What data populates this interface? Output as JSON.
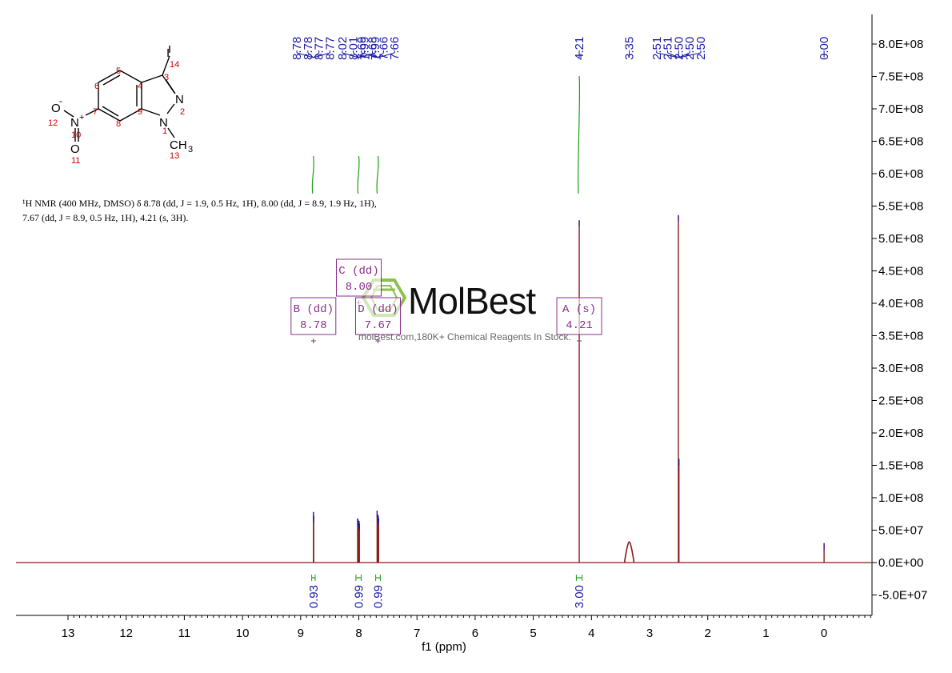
{
  "chart_data": {
    "type": "line",
    "xlabel": "f1 (ppm)",
    "xlim": [
      14,
      -1
    ],
    "x_reversed": true,
    "ylim": [
      -80000000,
      850000000
    ],
    "x_ticks": [
      "13",
      "12",
      "11",
      "10",
      "9",
      "8",
      "7",
      "6",
      "5",
      "4",
      "3",
      "2",
      "1",
      "0"
    ],
    "y_ticks": [
      {
        "value": 800000000,
        "label": "8.0E+08"
      },
      {
        "value": 750000000,
        "label": "7.5E+08"
      },
      {
        "value": 700000000,
        "label": "7.0E+08"
      },
      {
        "value": 650000000,
        "label": "6.5E+08"
      },
      {
        "value": 600000000,
        "label": "6.0E+08"
      },
      {
        "value": 550000000,
        "label": "5.5E+08"
      },
      {
        "value": 500000000,
        "label": "5.0E+08"
      },
      {
        "value": 450000000,
        "label": "4.5E+08"
      },
      {
        "value": 400000000,
        "label": "4.0E+08"
      },
      {
        "value": 350000000,
        "label": "3.5E+08"
      },
      {
        "value": 300000000,
        "label": "3.0E+08"
      },
      {
        "value": 250000000,
        "label": "2.5E+08"
      },
      {
        "value": 200000000,
        "label": "2.0E+08"
      },
      {
        "value": 150000000,
        "label": "1.5E+08"
      },
      {
        "value": 100000000,
        "label": "1.0E+08"
      },
      {
        "value": 50000000,
        "label": "5.0E+07"
      },
      {
        "value": 0,
        "label": "0.0E+00"
      },
      {
        "value": -50000000,
        "label": "-5.0E+07"
      }
    ],
    "peaks": [
      {
        "ppm": 8.78,
        "height": 78000000
      },
      {
        "ppm": 8.775,
        "height": 72000000
      },
      {
        "ppm": 8.02,
        "height": 68000000
      },
      {
        "ppm": 8.01,
        "height": 66000000
      },
      {
        "ppm": 7.995,
        "height": 64000000
      },
      {
        "ppm": 7.99,
        "height": 60000000
      },
      {
        "ppm": 7.685,
        "height": 80000000
      },
      {
        "ppm": 7.675,
        "height": 74000000
      },
      {
        "ppm": 7.665,
        "height": 72000000
      },
      {
        "ppm": 7.66,
        "height": 68000000
      },
      {
        "ppm": 4.21,
        "height": 528000000
      },
      {
        "ppm": 3.35,
        "height": 32000000,
        "broad": true
      },
      {
        "ppm": 2.505,
        "height": 536000000
      },
      {
        "ppm": 2.495,
        "height": 160000000
      },
      {
        "ppm": 0.0,
        "height": 30000000
      }
    ],
    "peak_labels": [
      "8.78",
      "8.78",
      "8.77",
      "8.77",
      "8.02",
      "8.01",
      "7.99",
      "7.99",
      "7.69",
      "7.68",
      "7.66",
      "7.66",
      "4.21",
      "3.35",
      "2.51",
      "2.51",
      "2.50",
      "2.50",
      "2.50",
      "0.00"
    ],
    "peak_label_groups": [
      {
        "ppm": 8.78,
        "labels": [
          0,
          3
        ]
      },
      {
        "ppm": 8.0,
        "labels": [
          4,
          7
        ]
      },
      {
        "ppm": 7.67,
        "labels": [
          8,
          11
        ]
      },
      {
        "ppm": 4.21,
        "labels": [
          12,
          12
        ]
      },
      {
        "ppm": 3.35,
        "labels": [
          13,
          13
        ]
      },
      {
        "ppm": 2.5,
        "labels": [
          14,
          18
        ]
      },
      {
        "ppm": 0.0,
        "labels": [
          19,
          19
        ]
      }
    ],
    "integrals": [
      {
        "ppm": 8.78,
        "value": "0.93",
        "from": 8.81,
        "to": 8.75
      },
      {
        "ppm": 8.0,
        "value": "0.99",
        "from": 8.05,
        "to": 7.96
      },
      {
        "ppm": 7.67,
        "value": "0.99",
        "from": 7.71,
        "to": 7.63
      },
      {
        "ppm": 4.21,
        "value": "3.00",
        "from": 4.26,
        "to": 4.16
      }
    ],
    "multiplets": [
      {
        "id": "B",
        "type": "dd",
        "line1": "B (dd)",
        "line2": "8.78",
        "ppm": 8.78,
        "row": 1
      },
      {
        "id": "C",
        "type": "dd",
        "line1": "C (dd)",
        "line2": "8.00",
        "ppm": 8.0,
        "row": 0
      },
      {
        "id": "D",
        "type": "dd",
        "line1": "D (dd)",
        "line2": "7.67",
        "ppm": 7.67,
        "row": 1
      },
      {
        "id": "A",
        "type": "s",
        "line1": "A (s)",
        "line2": "4.21",
        "ppm": 4.21,
        "row": 1
      }
    ]
  },
  "nmr_description": {
    "line1": "¹H NMR (400 MHz, DMSO) δ 8.78 (dd, J = 1.9, 0.5 Hz, 1H), 8.00 (dd, J = 8.9, 1.9 Hz, 1H),",
    "line2": "7.67 (dd, J = 8.9, 0.5 Hz, 1H), 4.21 (s, 3H)."
  },
  "structure": {
    "atoms": {
      "iodine": "I",
      "n2": "N",
      "n1": "N",
      "nitro_n": "N",
      "o_minus": "O",
      "o_double": "O",
      "methyl": "CH",
      "methyl_sub": "3",
      "plus": "+",
      "minus": "-"
    },
    "numbers": [
      "1",
      "2",
      "3",
      "4",
      "5",
      "6",
      "7",
      "8",
      "9",
      "10",
      "11",
      "12",
      "13",
      "14"
    ]
  },
  "watermark": {
    "brand": "MolBest",
    "tagline": "molBest.com,180K+ Chemical Reagents In Stock."
  },
  "colors": {
    "spectrum": "#8b1a1a",
    "labels": "#1a1aa6",
    "integral_curve": "#1a9e1a",
    "multiplet_box": "#8b2f8b",
    "atom_numbers": "#cc0000",
    "logo_green": "#8bc34a"
  }
}
